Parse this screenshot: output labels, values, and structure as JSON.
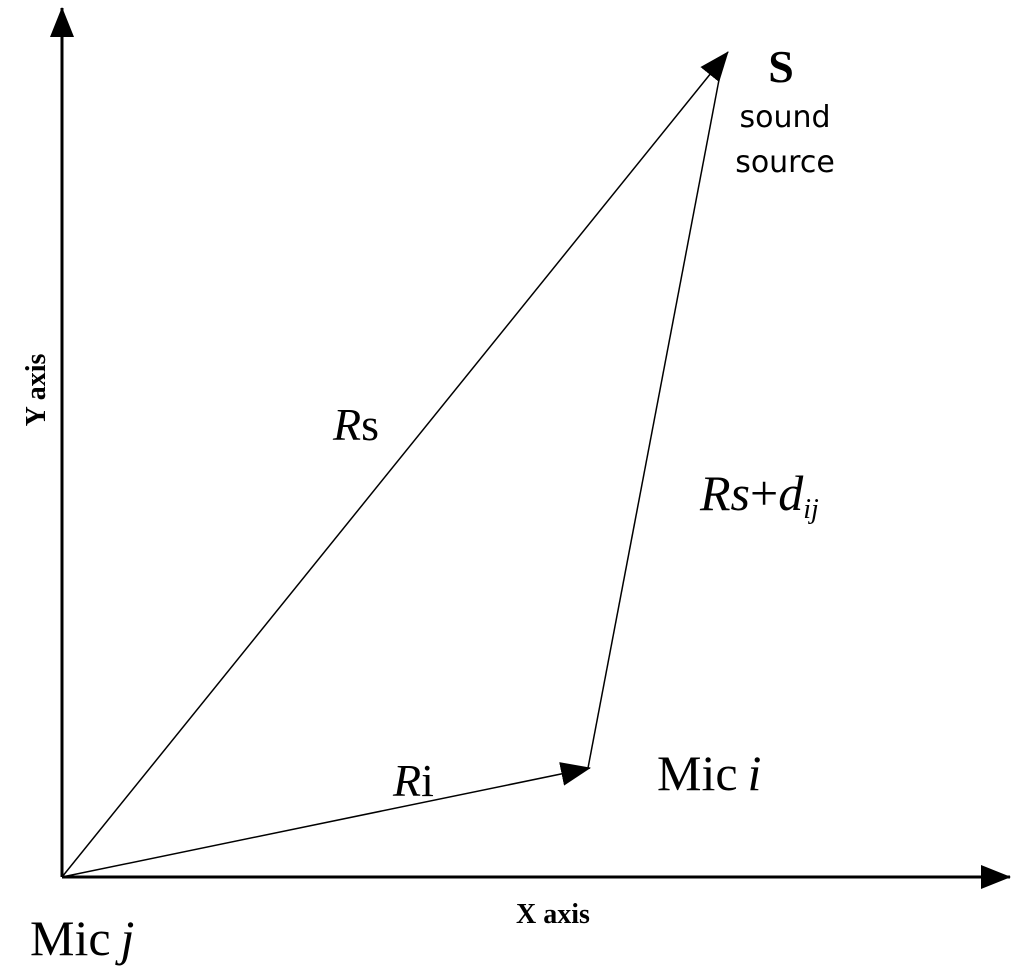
{
  "axes": {
    "x": "X axis",
    "y": "Y axis"
  },
  "source": {
    "symbol": "S",
    "caption": [
      "sound",
      "source"
    ]
  },
  "vectors": {
    "rs": [
      "R",
      "s"
    ],
    "ri": [
      "R",
      "i"
    ],
    "rsd": [
      "Rs",
      "+",
      "d",
      "ij"
    ]
  },
  "mics": {
    "i": [
      "Mic",
      "i"
    ],
    "j": [
      "Mic",
      "j"
    ]
  }
}
